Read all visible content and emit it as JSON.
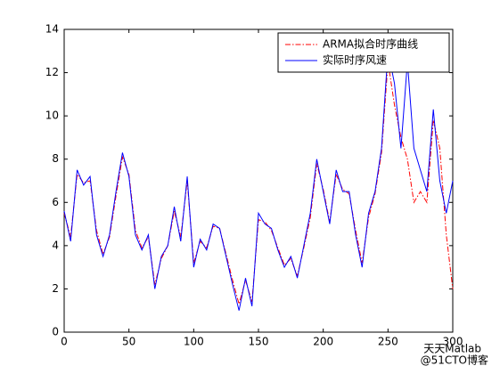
{
  "chart_data": {
    "type": "line",
    "x": [
      0,
      5,
      10,
      15,
      20,
      25,
      30,
      35,
      40,
      45,
      50,
      55,
      60,
      65,
      70,
      75,
      80,
      85,
      90,
      95,
      100,
      105,
      110,
      115,
      120,
      125,
      130,
      135,
      140,
      145,
      150,
      155,
      160,
      165,
      170,
      175,
      180,
      185,
      190,
      195,
      200,
      205,
      210,
      215,
      220,
      225,
      230,
      235,
      240,
      245,
      250,
      255,
      260,
      265,
      270,
      275,
      280,
      285,
      290,
      295,
      300
    ],
    "series": [
      {
        "name": "ARMA拟合时序曲线",
        "color": "#ff0000",
        "dash": "6,2,1.5,2",
        "values": [
          5.5,
          4.4,
          7.3,
          6.9,
          7.0,
          4.7,
          3.6,
          4.4,
          6.3,
          8.1,
          7.3,
          4.7,
          3.9,
          4.4,
          2.2,
          3.4,
          4.0,
          5.6,
          4.4,
          7.0,
          3.2,
          4.2,
          3.9,
          4.9,
          4.8,
          3.6,
          2.4,
          1.3,
          2.4,
          1.4,
          5.2,
          5.1,
          4.7,
          3.9,
          3.1,
          3.4,
          2.6,
          3.9,
          5.3,
          7.8,
          6.6,
          5.1,
          7.3,
          6.6,
          6.4,
          4.7,
          3.2,
          5.3,
          6.4,
          8.3,
          12.5,
          10.5,
          9.0,
          8.0,
          6.0,
          6.5,
          6.0,
          9.8,
          8.5,
          4.5,
          2.0
        ]
      },
      {
        "name": "实际时序风速",
        "color": "#0000ff",
        "values": [
          5.6,
          4.2,
          7.5,
          6.8,
          7.2,
          4.5,
          3.5,
          4.5,
          6.5,
          8.3,
          7.2,
          4.5,
          3.8,
          4.5,
          2.0,
          3.5,
          4.0,
          5.8,
          4.2,
          7.2,
          3.0,
          4.3,
          3.8,
          5.0,
          4.8,
          3.5,
          2.2,
          1.0,
          2.5,
          1.2,
          5.5,
          5.0,
          4.8,
          3.8,
          3.0,
          3.5,
          2.5,
          4.0,
          5.5,
          8.0,
          6.5,
          5.0,
          7.5,
          6.5,
          6.5,
          4.5,
          3.0,
          5.5,
          6.5,
          8.5,
          13.0,
          11.5,
          8.5,
          12.5,
          8.5,
          7.5,
          6.5,
          10.3,
          7.0,
          5.5,
          7.0
        ]
      }
    ],
    "xlim": [
      0,
      300
    ],
    "xticks": [
      0,
      50,
      100,
      150,
      200,
      250,
      300
    ],
    "ylim": [
      0,
      14
    ],
    "yticks": [
      0,
      2,
      4,
      6,
      8,
      10,
      12,
      14
    ],
    "legend": "northeast",
    "watermark": [
      "天天Matlab",
      "@51CTO博客"
    ]
  }
}
